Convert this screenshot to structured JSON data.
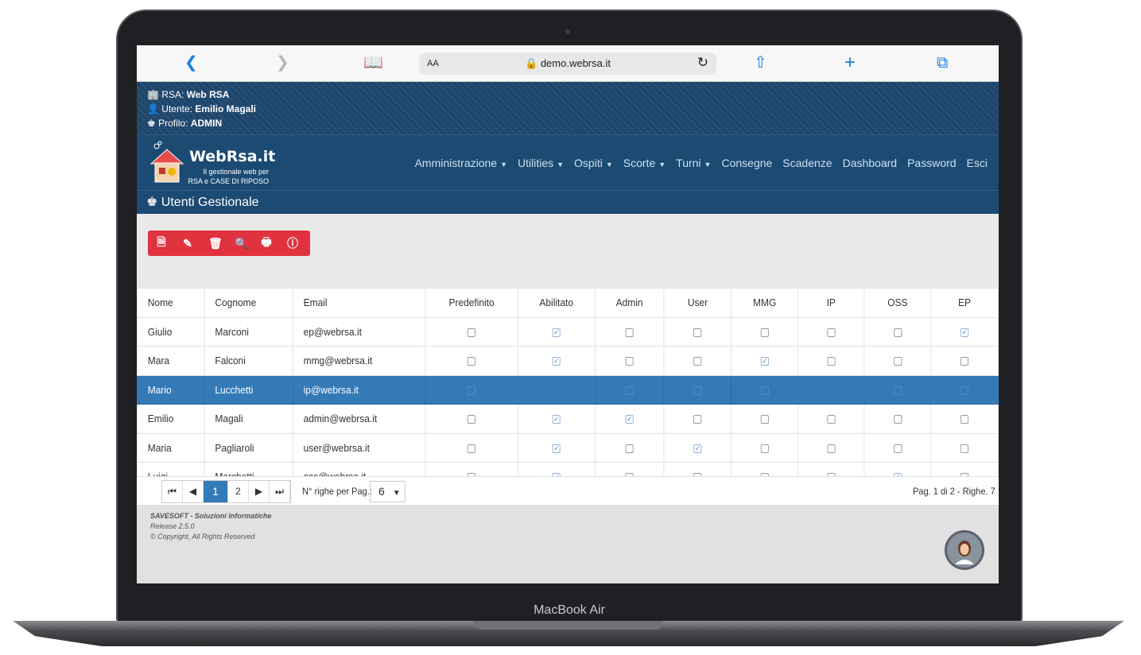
{
  "device": {
    "label": "MacBook Air"
  },
  "browser": {
    "aa": "AA",
    "url": "demo.webrsa.it"
  },
  "info": {
    "rsa_label": "RSA:",
    "rsa_value": "Web RSA",
    "user_label": "Utente:",
    "user_value": "Emilio Magali",
    "profile_label": "Profilo:",
    "profile_value": "ADMIN"
  },
  "logo": {
    "brand": "WebRsa.it",
    "tagline1": "Il gestionale web per",
    "tagline2": "RSA e CASE DI RIPOSO"
  },
  "menu": [
    "Amministrazione",
    "Utilities",
    "Ospiti",
    "Scorte",
    "Turni",
    "Consegne",
    "Scadenze",
    "Dashboard",
    "Password",
    "Esci"
  ],
  "page": {
    "title": "Utenti Gestionale"
  },
  "table": {
    "headers": [
      "Nome",
      "Cognome",
      "Email",
      "Predefinito",
      "Abilitato",
      "Admin",
      "User",
      "MMG",
      "IP",
      "OSS",
      "EP"
    ],
    "rows": [
      {
        "nome": "Giulio",
        "cognome": "Marconi",
        "email": "ep@webrsa.it",
        "flags": [
          false,
          true,
          false,
          false,
          false,
          false,
          false,
          true
        ]
      },
      {
        "nome": "Mara",
        "cognome": "Falconi",
        "email": "mmg@webrsa.it",
        "flags": [
          false,
          true,
          false,
          false,
          true,
          false,
          false,
          false
        ]
      },
      {
        "nome": "Mario",
        "cognome": "Lucchetti",
        "email": "ip@webrsa.it",
        "flags": [
          false,
          true,
          false,
          false,
          false,
          true,
          false,
          false
        ],
        "selected": true
      },
      {
        "nome": "Emilio",
        "cognome": "Magali",
        "email": "admin@webrsa.it",
        "flags": [
          false,
          true,
          true,
          false,
          false,
          false,
          false,
          false
        ]
      },
      {
        "nome": "Maria",
        "cognome": "Pagliaroli",
        "email": "user@webrsa.it",
        "flags": [
          false,
          true,
          false,
          true,
          false,
          false,
          false,
          false
        ]
      },
      {
        "nome": "Luigi",
        "cognome": "Marchetti",
        "email": "oss@webrsa.it",
        "flags": [
          false,
          true,
          false,
          false,
          false,
          false,
          true,
          false
        ]
      }
    ]
  },
  "pager": {
    "first": "⏮",
    "prev": "◀",
    "page1": "1",
    "page2": "2",
    "next": "▶",
    "last": "⏭",
    "rows_label": "N° righe per Pag.:",
    "rows_value": "6",
    "info": "Pag. 1 di 2 - Righe. 7"
  },
  "footer": {
    "company": "SAVESOFT - Soluzioni Informatiche",
    "release": "Release 2.5.0",
    "copyright": "© Copyright, All Rights Reserved"
  },
  "colors": {
    "header": "#1b4a73",
    "toolbar": "#e0323f",
    "selected_row": "#337ab7"
  }
}
